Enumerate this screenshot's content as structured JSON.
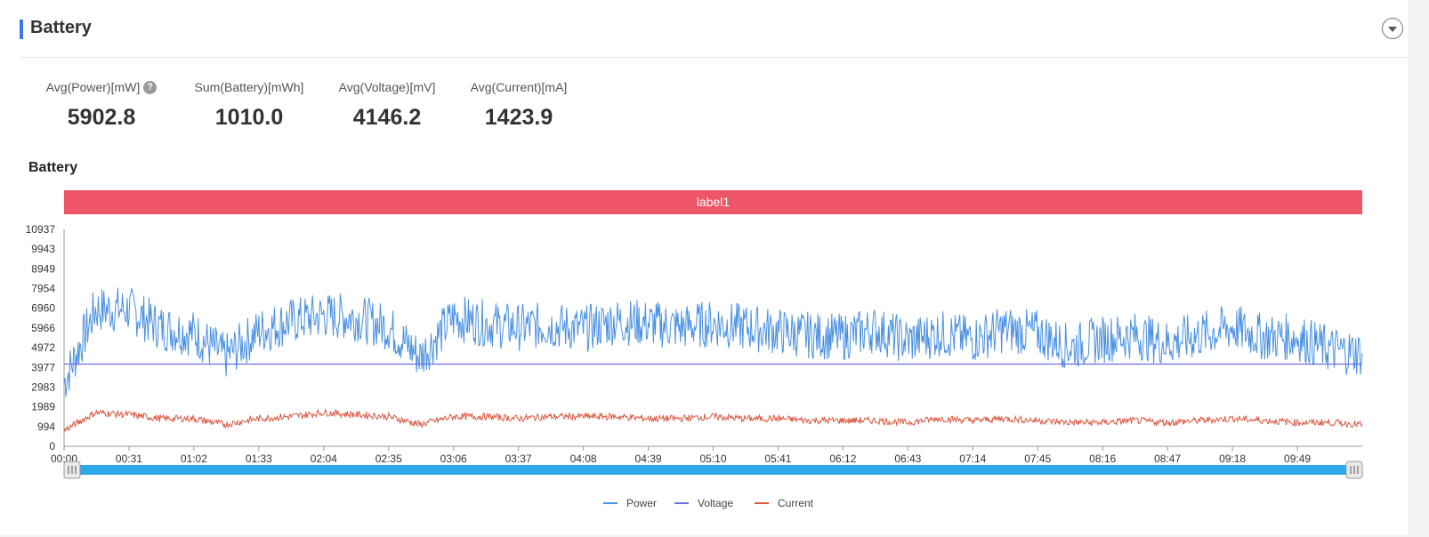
{
  "panel": {
    "title": "Battery"
  },
  "stats": [
    {
      "label": "Avg(Power)[mW]",
      "value": "5902.8",
      "help": "?"
    },
    {
      "label": "Sum(Battery)[mWh]",
      "value": "1010.0"
    },
    {
      "label": "Avg(Voltage)[mV]",
      "value": "4146.2"
    },
    {
      "label": "Avg(Current)[mA]",
      "value": "1423.9"
    }
  ],
  "chart_data": {
    "type": "line",
    "title": "Battery",
    "band_label": "label1",
    "x_ticks": [
      "00:00",
      "00:31",
      "01:02",
      "01:33",
      "02:04",
      "02:35",
      "03:06",
      "03:37",
      "04:08",
      "04:39",
      "05:10",
      "05:41",
      "06:12",
      "06:43",
      "07:14",
      "07:45",
      "08:16",
      "08:47",
      "09:18",
      "09:49"
    ],
    "x_range": [
      "00:00",
      "10:20"
    ],
    "y_ticks": [
      0,
      994,
      1989,
      2983,
      3977,
      4972,
      5966,
      6960,
      7954,
      8949,
      9943,
      10937
    ],
    "ylim": [
      0,
      10937
    ],
    "legend_position": "bottom",
    "colors": {
      "Power": "#4a90e2",
      "Voltage": "#6a6ee6",
      "Current": "#d9573f",
      "band": "#ee5566",
      "slider": "#2fa8ea"
    },
    "series": [
      {
        "name": "Power",
        "x": [
          "00:00",
          "00:15",
          "00:31",
          "00:46",
          "01:02",
          "01:17",
          "01:33",
          "01:48",
          "02:04",
          "02:19",
          "02:35",
          "02:50",
          "03:06",
          "03:21",
          "03:37",
          "03:52",
          "04:08",
          "04:23",
          "04:39",
          "04:54",
          "05:10",
          "05:25",
          "05:41",
          "05:56",
          "06:12",
          "06:27",
          "06:43",
          "06:58",
          "07:14",
          "07:29",
          "07:45",
          "08:00",
          "08:16",
          "08:31",
          "08:47",
          "09:02",
          "09:18",
          "09:33",
          "09:49",
          "10:04",
          "10:20"
        ],
        "values": [
          3200,
          6900,
          6900,
          6000,
          5700,
          4500,
          5800,
          6300,
          6600,
          6500,
          6000,
          4500,
          6500,
          6200,
          6000,
          6100,
          5900,
          6300,
          6200,
          6000,
          6200,
          6000,
          5800,
          5600,
          5500,
          5900,
          5300,
          5700,
          5400,
          5900,
          5700,
          5000,
          5400,
          5600,
          5200,
          5600,
          6000,
          5500,
          5500,
          4900,
          4700
        ]
      },
      {
        "name": "Voltage",
        "x": [
          "00:00",
          "10:20"
        ],
        "values": [
          4146,
          4146
        ]
      },
      {
        "name": "Current",
        "x": [
          "00:00",
          "00:15",
          "00:31",
          "00:46",
          "01:02",
          "01:17",
          "01:33",
          "01:48",
          "02:04",
          "02:19",
          "02:35",
          "02:50",
          "03:06",
          "03:21",
          "03:37",
          "03:52",
          "04:08",
          "04:23",
          "04:39",
          "04:54",
          "05:10",
          "05:25",
          "05:41",
          "05:56",
          "06:12",
          "06:27",
          "06:43",
          "06:58",
          "07:14",
          "07:29",
          "07:45",
          "08:00",
          "08:16",
          "08:31",
          "08:47",
          "09:02",
          "09:18",
          "09:33",
          "09:49",
          "10:04",
          "10:20"
        ],
        "values": [
          800,
          1700,
          1600,
          1400,
          1400,
          1100,
          1400,
          1500,
          1700,
          1600,
          1500,
          1100,
          1500,
          1500,
          1400,
          1500,
          1500,
          1500,
          1400,
          1400,
          1500,
          1400,
          1400,
          1300,
          1300,
          1300,
          1200,
          1400,
          1300,
          1400,
          1300,
          1200,
          1200,
          1300,
          1200,
          1300,
          1400,
          1300,
          1200,
          1200,
          1100
        ]
      }
    ]
  }
}
